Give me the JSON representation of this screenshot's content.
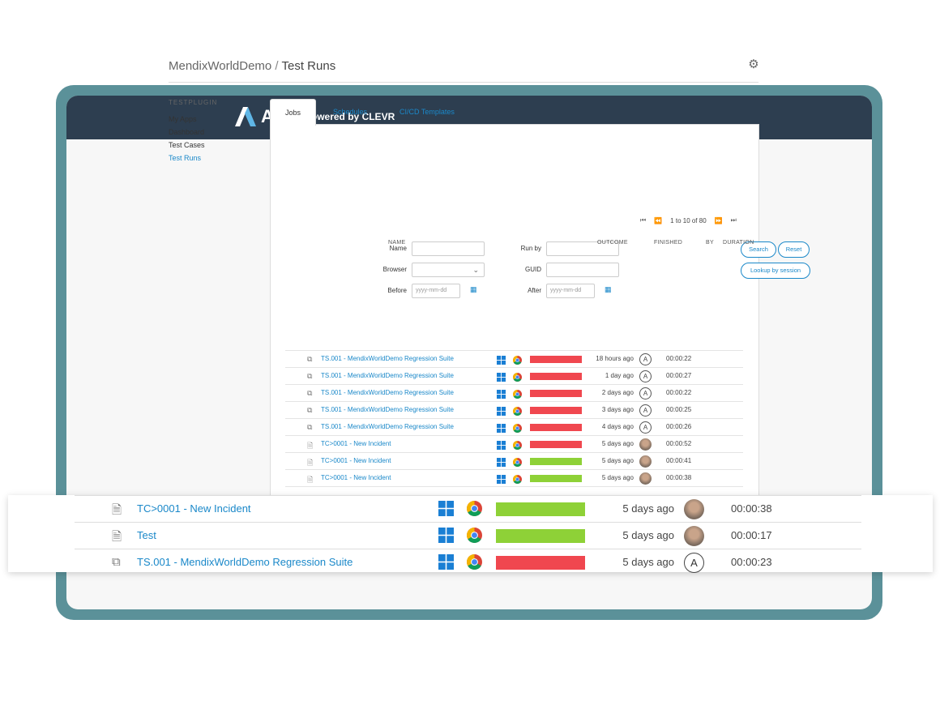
{
  "header": {
    "brand": "ATS",
    "powered_by": "Powered by CLEVR"
  },
  "breadcrumb": {
    "app": "MendixWorldDemo",
    "separator": " / ",
    "page": "Test Runs"
  },
  "sidebar": {
    "heading": "TESTPLUGIN",
    "items": [
      {
        "label": "My Apps",
        "active": false
      },
      {
        "label": "Dashboard",
        "active": false
      },
      {
        "label": "Test Cases",
        "active": false
      },
      {
        "label": "Test Runs",
        "active": true
      }
    ]
  },
  "tabs": [
    {
      "label": "Jobs",
      "active": true
    },
    {
      "label": "Schedules",
      "active": false
    },
    {
      "label": "CI/CD Templates",
      "active": false
    }
  ],
  "filters": {
    "name_label": "Name",
    "browser_label": "Browser",
    "before_label": "Before",
    "before_placeholder": "yyyy-mm-dd",
    "runby_label": "Run by",
    "guid_label": "GUID",
    "after_label": "After",
    "after_placeholder": "yyyy-mm-dd"
  },
  "buttons": {
    "search": "Search",
    "reset": "Reset",
    "lookup": "Lookup by session"
  },
  "pager": {
    "first": "⏮",
    "prev": "⏪",
    "text": "1 to 10 of 80",
    "next": "⏩",
    "last": "⏭"
  },
  "columns": {
    "name": "NAME",
    "outcome": "OUTCOME",
    "finished": "FINISHED",
    "by": "BY",
    "duration": "DURATION"
  },
  "colors": {
    "fail": "#f0474f",
    "pass": "#8ed137"
  },
  "rows": [
    {
      "icon": "suite-icon",
      "name": "TS.001 - MendixWorldDemo Regression Suite",
      "outcome": "fail",
      "finished": "18 hours ago",
      "by": "A",
      "duration": "00:00:22"
    },
    {
      "icon": "suite-icon",
      "name": "TS.001 - MendixWorldDemo Regression Suite",
      "outcome": "fail",
      "finished": "1 day ago",
      "by": "A",
      "duration": "00:00:27"
    },
    {
      "icon": "suite-icon",
      "name": "TS.001 - MendixWorldDemo Regression Suite",
      "outcome": "fail",
      "finished": "2 days ago",
      "by": "A",
      "duration": "00:00:22"
    },
    {
      "icon": "suite-icon",
      "name": "TS.001 - MendixWorldDemo Regression Suite",
      "outcome": "fail",
      "finished": "3 days ago",
      "by": "A",
      "duration": "00:00:25"
    },
    {
      "icon": "suite-icon",
      "name": "TS.001 - MendixWorldDemo Regression Suite",
      "outcome": "fail",
      "finished": "4 days ago",
      "by": "A",
      "duration": "00:00:26"
    },
    {
      "icon": "testcase-icon",
      "name": "TC>0001 - New Incident",
      "outcome": "fail",
      "finished": "5 days ago",
      "by": "",
      "duration": "00:00:52"
    },
    {
      "icon": "testcase-icon",
      "name": "TC>0001 - New Incident",
      "outcome": "pass",
      "finished": "5 days ago",
      "by": "",
      "duration": "00:00:41"
    },
    {
      "icon": "testcase-icon",
      "name": "TC>0001 - New Incident",
      "outcome": "pass",
      "finished": "5 days ago",
      "by": "",
      "duration": "00:00:38"
    }
  ],
  "zoomed_rows": [
    {
      "icon": "testcase-icon",
      "name": "TC>0001 - New Incident",
      "outcome": "pass",
      "finished": "5 days ago",
      "by": "",
      "duration": "00:00:38"
    },
    {
      "icon": "testcase-icon",
      "name": "Test",
      "outcome": "pass",
      "finished": "5 days ago",
      "by": "",
      "duration": "00:00:17"
    },
    {
      "icon": "suite-icon",
      "name": "TS.001 - MendixWorldDemo Regression Suite",
      "outcome": "fail",
      "finished": "5 days ago",
      "by": "A",
      "duration": "00:00:23"
    }
  ]
}
